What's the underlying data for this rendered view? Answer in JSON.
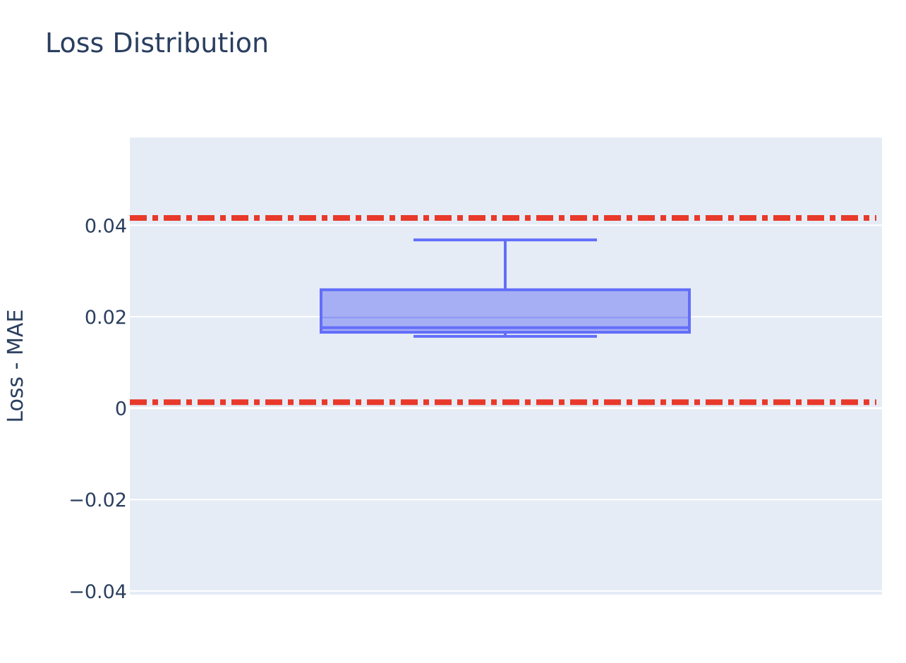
{
  "chart_data": {
    "type": "box",
    "title": "Loss Distribution",
    "xlabel": "",
    "ylabel": "Loss - MAE",
    "ylim": [
      -0.0408,
      0.0592
    ],
    "yticks": [
      {
        "value": -0.04,
        "label": "−0.04"
      },
      {
        "value": -0.02,
        "label": "−0.02"
      },
      {
        "value": 0,
        "label": "0"
      },
      {
        "value": 0.02,
        "label": "0.02"
      },
      {
        "value": 0.04,
        "label": "0.04"
      }
    ],
    "grid": true,
    "box": {
      "lower_fence": 0.0157,
      "q1": 0.0166,
      "median": 0.0176,
      "mean": 0.0198,
      "q3": 0.0259,
      "upper_fence": 0.0368
    },
    "reference_lines": [
      {
        "y": 0.0416,
        "style": "dashdot"
      },
      {
        "y": 0.0013,
        "style": "dashdot"
      }
    ],
    "colors": {
      "plot_bg": "#e5ecf6",
      "grid": "#ffffff",
      "box_line": "#636efa",
      "box_fill": "#a6aff3",
      "reference_line": "#e8392a",
      "text": "#2a3f5f"
    }
  }
}
